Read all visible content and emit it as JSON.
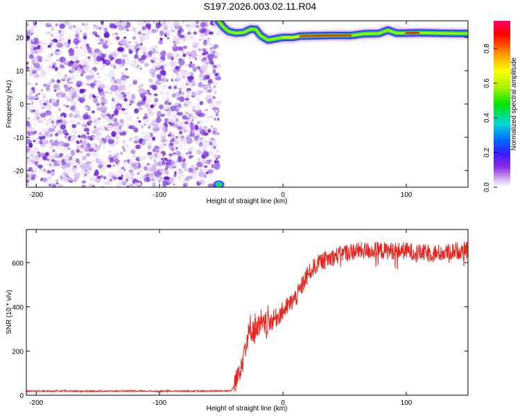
{
  "title": "S197.2026.003.02.11.R04",
  "chart_data": [
    {
      "type": "heatmap",
      "name": "spectrogram",
      "xlabel": "Height of straight line (km)",
      "ylabel": "Frequency (Hz)",
      "xlim": [
        -208,
        150
      ],
      "ylim": [
        -25,
        25
      ],
      "x_ticks": [
        -200,
        -100,
        0,
        100
      ],
      "y_ticks": [
        -20,
        -10,
        0,
        10,
        20
      ],
      "noise_region_x": [
        -208,
        -52
      ],
      "ridge": [
        {
          "x": -52,
          "y": 24.8
        },
        {
          "x": -48,
          "y": 23.0
        },
        {
          "x": -44,
          "y": 21.8
        },
        {
          "x": -38,
          "y": 21.3
        },
        {
          "x": -32,
          "y": 21.5
        },
        {
          "x": -26,
          "y": 22.5
        },
        {
          "x": -22,
          "y": 22.4
        },
        {
          "x": -18,
          "y": 20.5
        },
        {
          "x": -12,
          "y": 19.2
        },
        {
          "x": -6,
          "y": 19.6
        },
        {
          "x": 0,
          "y": 20.0
        },
        {
          "x": 8,
          "y": 20.0
        },
        {
          "x": 14,
          "y": 20.4
        },
        {
          "x": 24,
          "y": 20.5
        },
        {
          "x": 40,
          "y": 20.6
        },
        {
          "x": 55,
          "y": 20.6
        },
        {
          "x": 66,
          "y": 21.1
        },
        {
          "x": 78,
          "y": 21.2
        },
        {
          "x": 85,
          "y": 22.2
        },
        {
          "x": 92,
          "y": 21.3
        },
        {
          "x": 100,
          "y": 21.3
        },
        {
          "x": 110,
          "y": 21.4
        },
        {
          "x": 125,
          "y": 21.3
        },
        {
          "x": 140,
          "y": 21.2
        },
        {
          "x": 150,
          "y": 21.2
        }
      ],
      "lower_blob": {
        "x": -52,
        "y": -24.2
      },
      "colorbar": {
        "label": "Normalized spectral amplitude",
        "range": [
          0,
          0.96
        ],
        "ticks": [
          "0.0",
          "0.2",
          "0.4",
          "0.6",
          "0.8"
        ],
        "colors": [
          "#ffffff",
          "#d9c2f0",
          "#8e2be2",
          "#3b1cff",
          "#0064ff",
          "#00d7d7",
          "#00e600",
          "#aaf000",
          "#ffff00",
          "#ff9600",
          "#ff0000",
          "#ff0066"
        ]
      }
    },
    {
      "type": "line",
      "name": "snr",
      "xlabel": "Height of straight line (km)",
      "ylabel": "SNR (10 * v/v)",
      "xlim": [
        -208,
        150
      ],
      "ylim": [
        0,
        750
      ],
      "x_ticks": [
        -200,
        -100,
        0,
        100
      ],
      "y_ticks": [
        0,
        200,
        400,
        600
      ],
      "color": "#e8221c",
      "series": [
        {
          "name": "SNR",
          "x": [
            -208,
            -120,
            -60,
            -42,
            -38,
            -34,
            -30,
            -26,
            -20,
            -12,
            -6,
            0,
            6,
            12,
            18,
            24,
            30,
            40,
            50,
            60,
            70,
            80,
            90,
            100,
            110,
            120,
            130,
            140,
            150
          ],
          "values": [
            18,
            18,
            18,
            20,
            55,
            140,
            230,
            290,
            300,
            320,
            345,
            375,
            410,
            450,
            520,
            570,
            600,
            620,
            640,
            650,
            650,
            650,
            650,
            650,
            640,
            640,
            640,
            650,
            650
          ]
        }
      ]
    }
  ]
}
